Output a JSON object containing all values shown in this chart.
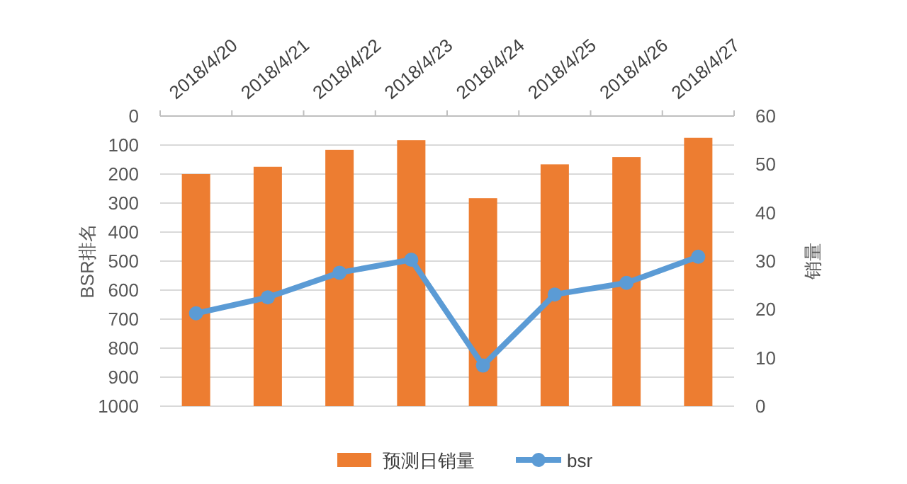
{
  "chart_data": {
    "type": "bar",
    "categories": [
      "2018/4/20",
      "2018/4/21",
      "2018/4/22",
      "2018/4/23",
      "2018/4/24",
      "2018/4/25",
      "2018/4/26",
      "2018/4/27"
    ],
    "series": [
      {
        "name": "预测日销量",
        "type": "bar",
        "axis": "y2",
        "color": "#ed7d31",
        "values": [
          48,
          49.5,
          53,
          55,
          43,
          50,
          51.5,
          55.5
        ]
      },
      {
        "name": "bsr",
        "type": "line",
        "axis": "y",
        "color": "#5b9bd5",
        "values": [
          680,
          625,
          540,
          495,
          860,
          615,
          575,
          485
        ]
      }
    ],
    "ylabel": "BSR排名",
    "y2label": "销量",
    "ylim": [
      1000,
      0
    ],
    "yticks": [
      0,
      100,
      200,
      300,
      400,
      500,
      600,
      700,
      800,
      900,
      1000
    ],
    "y2lim": [
      0,
      60
    ],
    "y2ticks": [
      0,
      10,
      20,
      30,
      40,
      50,
      60
    ],
    "grid": "y",
    "legend": "bottom",
    "marker": "circle"
  }
}
